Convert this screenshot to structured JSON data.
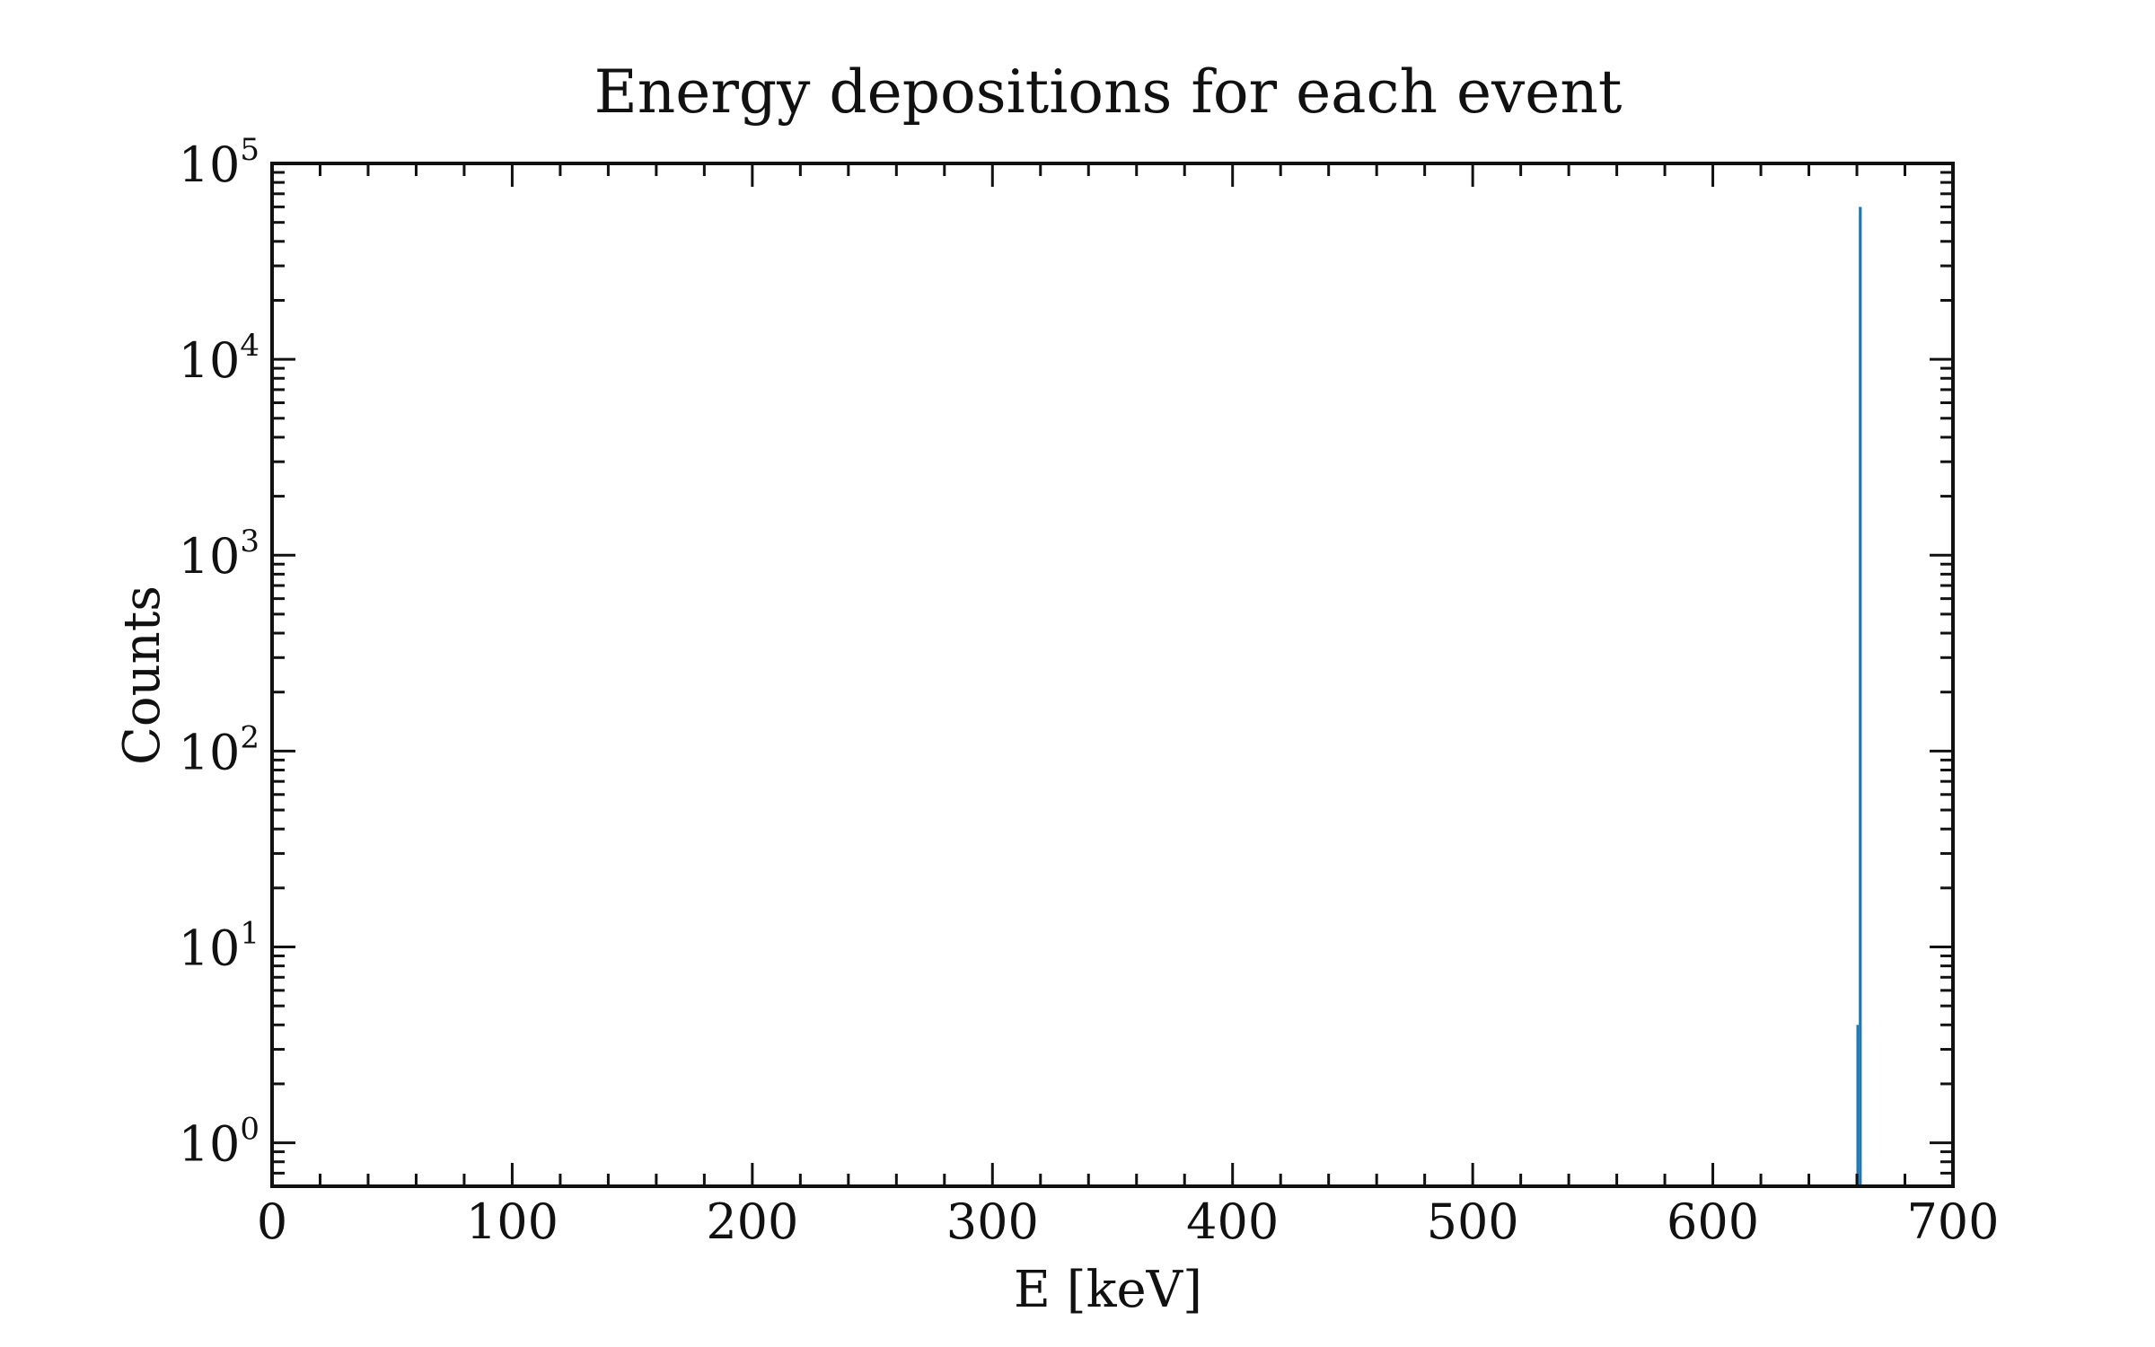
{
  "chart_data": {
    "type": "bar",
    "title": "Energy depositions for each event",
    "xlabel": "E [keV]",
    "ylabel": "Counts",
    "xlim": [
      0,
      700
    ],
    "ylim": [
      0.6,
      100000
    ],
    "yscale": "log",
    "grid": false,
    "x_ticks": [
      0,
      100,
      200,
      300,
      400,
      500,
      600,
      700
    ],
    "x_tick_labels": [
      "0",
      "100",
      "200",
      "300",
      "400",
      "500",
      "600",
      "700"
    ],
    "y_ticks": [
      1,
      10,
      100,
      1000,
      10000,
      100000
    ],
    "y_tick_labels": [
      {
        "base": "10",
        "exp": "0"
      },
      {
        "base": "10",
        "exp": "1"
      },
      {
        "base": "10",
        "exp": "2"
      },
      {
        "base": "10",
        "exp": "3"
      },
      {
        "base": "10",
        "exp": "4"
      },
      {
        "base": "10",
        "exp": "5"
      }
    ],
    "series": [
      {
        "color": "#1f77b4",
        "bins": [
          {
            "x0": 659.8,
            "x1": 660.8,
            "count": 4
          },
          {
            "x0": 660.8,
            "x1": 662.0,
            "count": 60000
          }
        ]
      }
    ]
  }
}
